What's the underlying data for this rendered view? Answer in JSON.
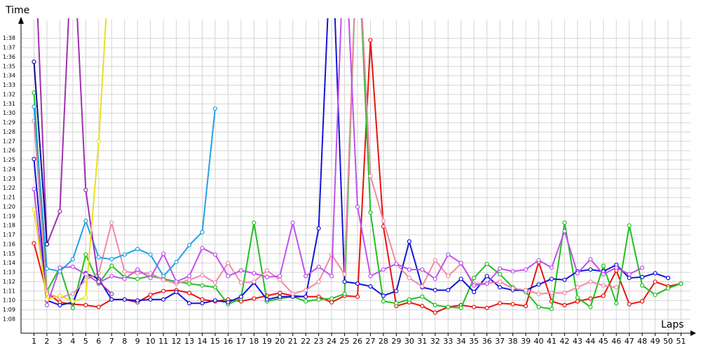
{
  "chart_data": {
    "type": "line",
    "title": "Time",
    "x_label": "Laps",
    "x": [
      1,
      2,
      3,
      4,
      5,
      6,
      7,
      8,
      9,
      10,
      11,
      12,
      13,
      14,
      15,
      16,
      17,
      18,
      19,
      20,
      21,
      22,
      23,
      24,
      25,
      26,
      27,
      28,
      29,
      30,
      31,
      32,
      33,
      34,
      35,
      36,
      37,
      38,
      39,
      40,
      41,
      42,
      43,
      44,
      45,
      46,
      47,
      48,
      49,
      50,
      51
    ],
    "xlim": [
      0,
      52
    ],
    "xticks": [
      1,
      2,
      3,
      4,
      5,
      6,
      7,
      8,
      9,
      10,
      11,
      12,
      13,
      14,
      15,
      16,
      17,
      18,
      19,
      20,
      21,
      22,
      23,
      24,
      25,
      26,
      27,
      28,
      29,
      30,
      31,
      32,
      33,
      34,
      35,
      36,
      37,
      38,
      39,
      40,
      41,
      42,
      43,
      44,
      45,
      46,
      47,
      48,
      49,
      50,
      51
    ],
    "ylim": [
      66.5,
      100
    ],
    "yticks": [
      {
        "value": 68,
        "label": "1:08"
      },
      {
        "value": 69,
        "label": "1:09"
      },
      {
        "value": 70,
        "label": "1:10"
      },
      {
        "value": 71,
        "label": "1:11"
      },
      {
        "value": 72,
        "label": "1:12"
      },
      {
        "value": 73,
        "label": "1:13"
      },
      {
        "value": 74,
        "label": "1:14"
      },
      {
        "value": 75,
        "label": "1:15"
      },
      {
        "value": 76,
        "label": "1:16"
      },
      {
        "value": 77,
        "label": "1:17"
      },
      {
        "value": 78,
        "label": "1:18"
      },
      {
        "value": 79,
        "label": "1:19"
      },
      {
        "value": 80,
        "label": "1:20"
      },
      {
        "value": 81,
        "label": "1:21"
      },
      {
        "value": 82,
        "label": "1:22"
      },
      {
        "value": 83,
        "label": "1:23"
      },
      {
        "value": 84,
        "label": "1:24"
      },
      {
        "value": 85,
        "label": "1:25"
      },
      {
        "value": 86,
        "label": "1:26"
      },
      {
        "value": 87,
        "label": "1:27"
      },
      {
        "value": 88,
        "label": "1:28"
      },
      {
        "value": 89,
        "label": "1:29"
      },
      {
        "value": 90,
        "label": "1:30"
      },
      {
        "value": 91,
        "label": "1:31"
      },
      {
        "value": 92,
        "label": "1:32"
      },
      {
        "value": 93,
        "label": "1:33"
      },
      {
        "value": 94,
        "label": "1:34"
      },
      {
        "value": 95,
        "label": "1:35"
      },
      {
        "value": 96,
        "label": "1:36"
      },
      {
        "value": 97,
        "label": "1:37"
      },
      {
        "value": 98,
        "label": "1:38"
      }
    ],
    "grid": true,
    "series": [
      {
        "color": "#e8140c",
        "values": [
          76.1,
          70.8,
          69.8,
          69.6,
          69.5,
          69.3,
          70.1,
          70.1,
          69.8,
          70.6,
          71.0,
          71.1,
          70.8,
          70.1,
          69.9,
          70.1,
          69.9,
          70.2,
          70.5,
          70.8,
          70.5,
          70.4,
          70.4,
          69.8,
          70.5,
          70.4,
          97.8,
          77.9,
          69.4,
          69.8,
          69.4,
          68.7,
          69.3,
          69.5,
          69.3,
          69.2,
          69.7,
          69.6,
          69.4,
          74.1,
          69.9,
          69.5,
          69.9,
          70.2,
          70.5,
          73.2,
          69.6,
          69.9,
          72.0,
          71.5,
          71.8
        ]
      },
      {
        "color": "#22c022",
        "values": [
          92.2,
          71.0,
          73.5,
          69.2,
          74.9,
          71.8,
          73.7,
          72.5,
          72.3,
          72.6,
          72.3,
          72.0,
          71.8,
          71.6,
          71.4,
          69.6,
          70.2,
          78.3,
          69.9,
          70.2,
          70.4,
          69.9,
          70.1,
          70.2,
          70.7,
          110,
          79.4,
          69.9,
          69.7,
          70.1,
          70.4,
          69.5,
          69.3,
          69.2,
          72.4,
          73.9,
          72.8,
          71.4,
          70.9,
          69.3,
          69.1,
          78.3,
          70.3,
          69.3,
          73.7,
          69.7,
          78.0,
          71.6,
          70.6,
          71.3,
          71.8
        ]
      },
      {
        "color": "#1414d8",
        "values": [
          85.1,
          70.0,
          69.5,
          69.8,
          72.9,
          72.3,
          70.1,
          70.1,
          70.0,
          70.1,
          70.1,
          70.9,
          69.7,
          69.7,
          70.0,
          69.8,
          70.4,
          71.9,
          70.1,
          70.4,
          70.4,
          70.4,
          77.7,
          110,
          72.0,
          71.8,
          71.5,
          70.5,
          71.0,
          76.3,
          71.4,
          71.1,
          71.1,
          72.3,
          70.9,
          72.6,
          71.4,
          71.1,
          71.1,
          71.7,
          72.3,
          72.2,
          73.1,
          73.3,
          73.1,
          73.8,
          72.4,
          72.5,
          72.9,
          72.4,
          null
        ]
      },
      {
        "color": "#f088a8",
        "values": [
          89.2,
          70.7,
          70.3,
          70.7,
          72.2,
          72.9,
          78.3,
          73.1,
          72.9,
          72.9,
          72.2,
          71.8,
          72.2,
          72.7,
          71.9,
          74.0,
          71.9,
          72.0,
          73.2,
          72.2,
          70.7,
          71.1,
          72.0,
          74.9,
          72.8,
          110,
          83.3,
          78.5,
          73.9,
          72.4,
          71.5,
          74.3,
          72.6,
          73.9,
          71.8,
          71.8,
          72.0,
          71.3,
          71.1,
          70.7,
          70.8,
          70.8,
          71.4,
          72.0,
          71.6,
          71.4,
          null,
          null,
          null,
          null,
          null
        ]
      },
      {
        "color": "#c050f0",
        "values": [
          81.9,
          69.5,
          73.5,
          73.6,
          72.8,
          71.9,
          72.6,
          72.3,
          73.3,
          72.4,
          75.0,
          72.0,
          72.6,
          75.6,
          74.9,
          72.6,
          73.2,
          72.9,
          72.5,
          72.6,
          78.3,
          72.6,
          73.6,
          72.6,
          110,
          80.0,
          72.6,
          73.3,
          73.9,
          73.3,
          73.3,
          72.3,
          74.9,
          74.0,
          71.6,
          71.8,
          73.4,
          73.1,
          73.3,
          74.3,
          73.5,
          77.4,
          72.9,
          74.4,
          72.8,
          73.5,
          72.8,
          73.5,
          null,
          null,
          null
        ]
      },
      {
        "color": "#20a0e8",
        "values": [
          90.7,
          73.4,
          73.1,
          74.4,
          78.5,
          74.6,
          74.4,
          74.9,
          75.5,
          74.9,
          72.6,
          74.1,
          75.9,
          77.3,
          90.5,
          null,
          null,
          null,
          null,
          null,
          null,
          null,
          null,
          null,
          null,
          null,
          null,
          null,
          null,
          null,
          null,
          null,
          null,
          null,
          null,
          null,
          null,
          null,
          null,
          null,
          null,
          null,
          null,
          null,
          null,
          null,
          null,
          null,
          null,
          null,
          null
        ]
      },
      {
        "color": "#a030b0",
        "values": [
          110,
          76.0,
          79.5,
          110,
          81.8,
          72.0,
          70.7,
          null,
          null,
          null,
          null,
          null,
          null,
          null,
          null,
          null,
          null,
          null,
          null,
          null,
          null,
          null,
          null,
          null,
          null,
          null,
          null,
          null,
          null,
          null,
          null,
          null,
          null,
          null,
          null,
          null,
          null,
          null,
          null,
          null,
          null,
          null,
          null,
          null,
          null,
          null,
          null,
          null,
          null,
          null,
          null
        ]
      },
      {
        "color": "#e8e020",
        "values": [
          79.7,
          70.1,
          70.5,
          69.9,
          70.3,
          87.0,
          110,
          null,
          null,
          null,
          null,
          null,
          null,
          null,
          null,
          null,
          null,
          null,
          null,
          null,
          null,
          null,
          null,
          null,
          null,
          null,
          null,
          null,
          null,
          null,
          null,
          null,
          null,
          null,
          null,
          null,
          null,
          null,
          null,
          null,
          null,
          null,
          null,
          null,
          null,
          null,
          null,
          null,
          null,
          null,
          null
        ]
      },
      {
        "color": "#101090",
        "values": [
          95.5,
          76.0,
          null,
          null,
          null,
          null,
          null,
          null,
          null,
          null,
          null,
          null,
          null,
          null,
          null,
          null,
          null,
          null,
          null,
          null,
          null,
          null,
          null,
          null,
          null,
          null,
          null,
          null,
          null,
          null,
          null,
          null,
          null,
          null,
          null,
          null,
          null,
          null,
          null,
          null,
          null,
          null,
          null,
          null,
          null,
          null,
          null,
          null,
          null,
          null,
          null
        ]
      }
    ]
  }
}
